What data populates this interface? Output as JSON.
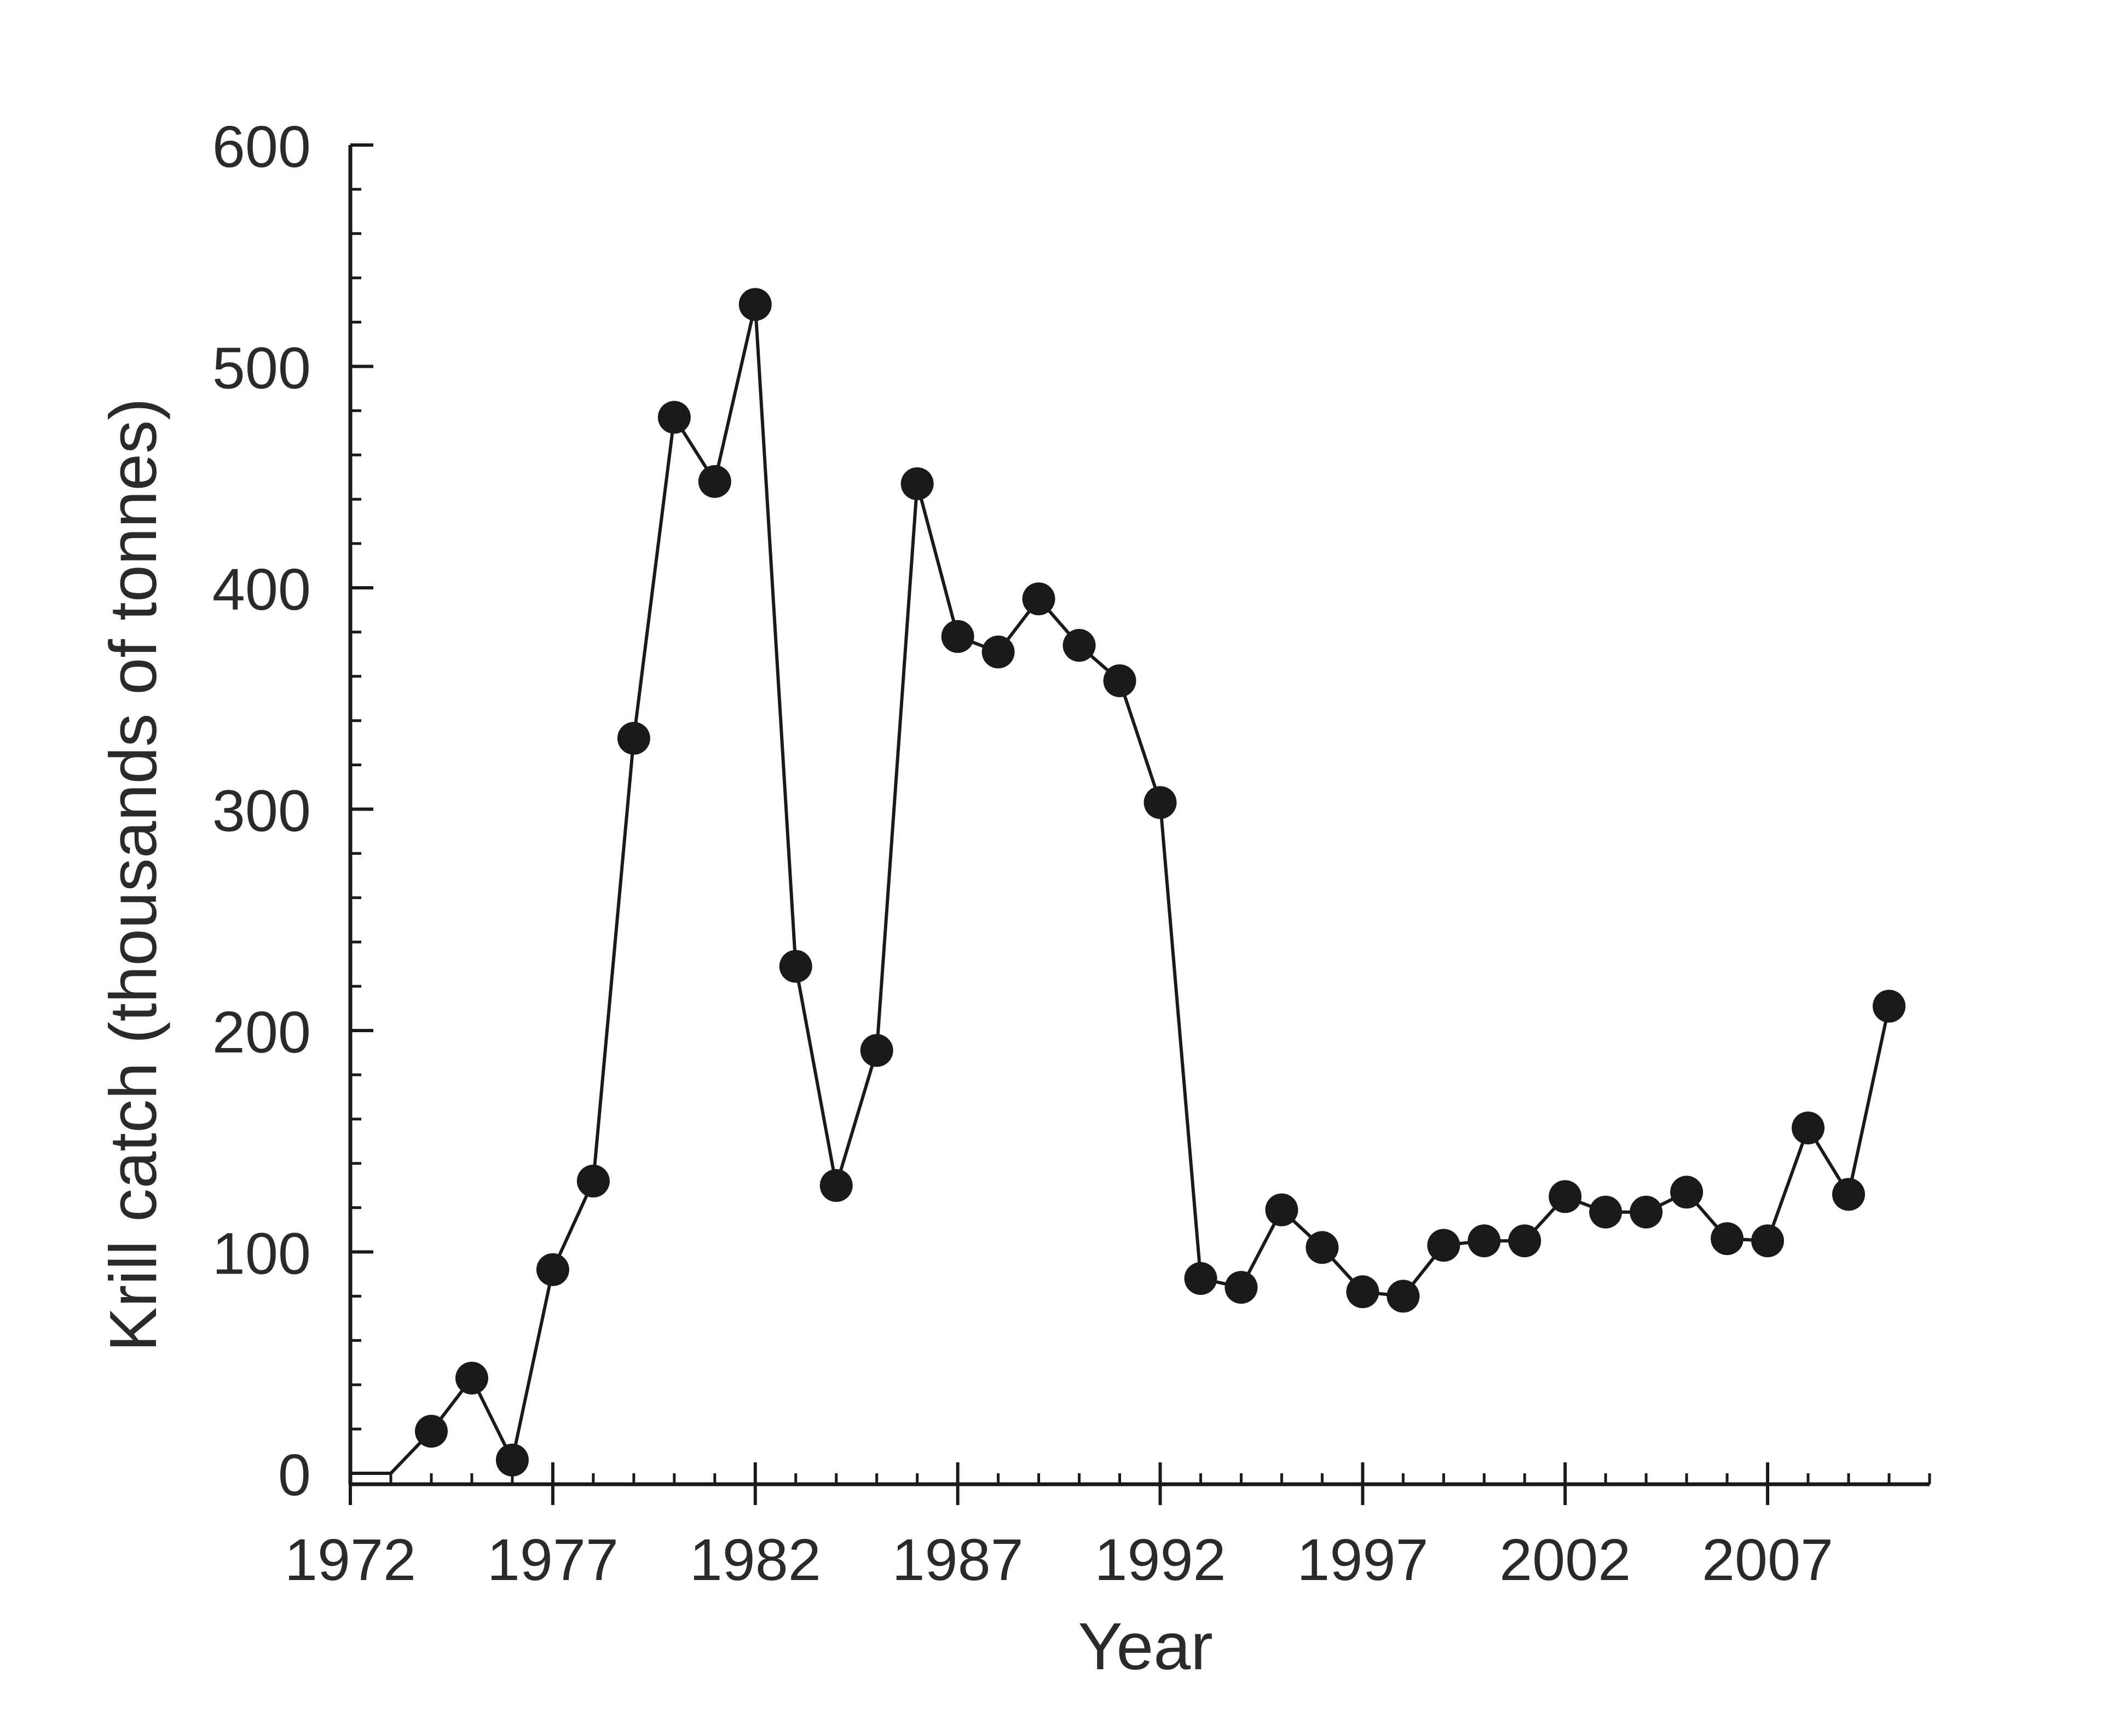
{
  "chart_data": {
    "type": "line",
    "title": "",
    "xlabel": "Year",
    "ylabel": "Krill catch (thousands of tonnes)",
    "xlim": [
      1972,
      2011
    ],
    "ylim": [
      0,
      600
    ],
    "x_ticks": [
      1972,
      1977,
      1982,
      1987,
      1992,
      1997,
      2002,
      2007
    ],
    "x_tick_labels": [
      "1972",
      "1977",
      "1982",
      "1987",
      "1992",
      "1997",
      "2002",
      "2007"
    ],
    "y_ticks": [
      0,
      100,
      200,
      300,
      400,
      500,
      600
    ],
    "y_tick_labels": [
      "0",
      "100",
      "200",
      "300",
      "400",
      "500",
      "600"
    ],
    "y_minor_step": 20,
    "grid": false,
    "line_color": "#1a1a1a",
    "series": [
      {
        "x": [
          1972,
          1973,
          1974,
          1975,
          1976,
          1977,
          1978,
          1979,
          1980,
          1981,
          1982,
          1983,
          1984,
          1985,
          1986,
          1987,
          1988,
          1989,
          1990,
          1991,
          1992,
          1993,
          1994,
          1995,
          1996,
          1997,
          1998,
          1999,
          2000,
          2001,
          2002,
          2003,
          2004,
          2005,
          2006,
          2007,
          2008,
          2009,
          2010
        ],
        "values": [
          0,
          0,
          19,
          43,
          6,
          92,
          132,
          332,
          477,
          448,
          528,
          229,
          130,
          191,
          447,
          378,
          371,
          395,
          374,
          358,
          303,
          88,
          84,
          119,
          102,
          82,
          80,
          103,
          105,
          105,
          125,
          118,
          118,
          127,
          106,
          105,
          156,
          126,
          211
        ],
        "markers": [
          false,
          false,
          true,
          true,
          true,
          true,
          true,
          true,
          true,
          true,
          true,
          true,
          true,
          true,
          true,
          true,
          true,
          true,
          true,
          true,
          true,
          true,
          true,
          true,
          true,
          true,
          true,
          true,
          true,
          true,
          true,
          true,
          true,
          true,
          true,
          true,
          true,
          true,
          true
        ]
      }
    ]
  }
}
